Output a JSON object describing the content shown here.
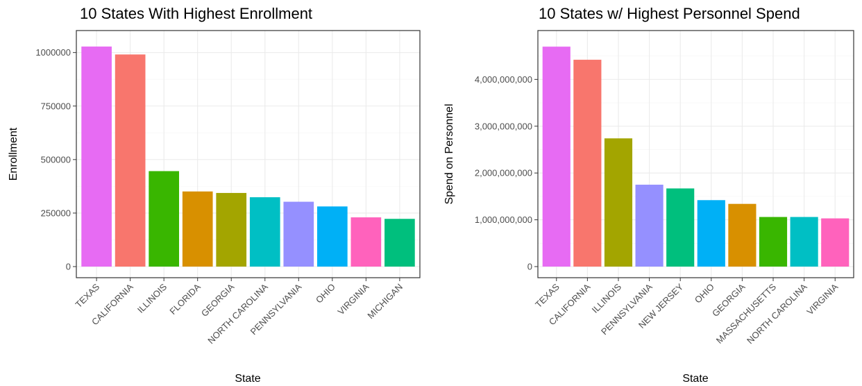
{
  "chart_data": [
    {
      "type": "bar",
      "title": "10 States With Highest Enrollment",
      "xlabel": "State",
      "ylabel": "Enrollment",
      "categories": [
        "TEXAS",
        "CALIFORNIA",
        "ILLINOIS",
        "FLORIDA",
        "GEORGIA",
        "NORTH CAROLINA",
        "PENNSYLVANIA",
        "OHIO",
        "VIRGINIA",
        "MICHIGAN"
      ],
      "values": [
        1028000,
        991000,
        446000,
        351000,
        344000,
        324000,
        303000,
        281000,
        230000,
        223000
      ],
      "colors": [
        "#E76BF3",
        "#F8766D",
        "#39B600",
        "#D89000",
        "#A3A500",
        "#00BFC4",
        "#9590FF",
        "#00B0F6",
        "#FF62BC",
        "#00BF7D"
      ],
      "ylim": [
        0,
        1080000
      ],
      "yticks": [
        0,
        250000,
        500000,
        750000,
        1000000
      ],
      "ytick_labels": [
        "0",
        "250000",
        "500000",
        "750000",
        "1000000"
      ],
      "grid": true,
      "legend": "none"
    },
    {
      "type": "bar",
      "title": "10 States w/ Highest Personnel Spend",
      "xlabel": "State",
      "ylabel": "Spend on Personnel",
      "categories": [
        "TEXAS",
        "CALIFORNIA",
        "ILLINOIS",
        "PENNSYLVANIA",
        "NEW JERSEY",
        "OHIO",
        "GEORGIA",
        "MASSACHUSETTS",
        "NORTH CAROLINA",
        "VIRGINIA"
      ],
      "values": [
        4700000000,
        4420000000,
        2740000000,
        1750000000,
        1670000000,
        1420000000,
        1340000000,
        1060000000,
        1060000000,
        1030000000
      ],
      "colors": [
        "#E76BF3",
        "#F8766D",
        "#A3A500",
        "#9590FF",
        "#00BF7D",
        "#00B0F6",
        "#D89000",
        "#39B600",
        "#00BFC4",
        "#FF62BC"
      ],
      "ylim": [
        0,
        4940000000
      ],
      "yticks": [
        0,
        1000000000,
        2000000000,
        3000000000,
        4000000000
      ],
      "ytick_labels": [
        "0",
        "1,000,000,000",
        "2,000,000,000",
        "3,000,000,000",
        "4,000,000,000"
      ],
      "grid": true,
      "legend": "none"
    }
  ]
}
